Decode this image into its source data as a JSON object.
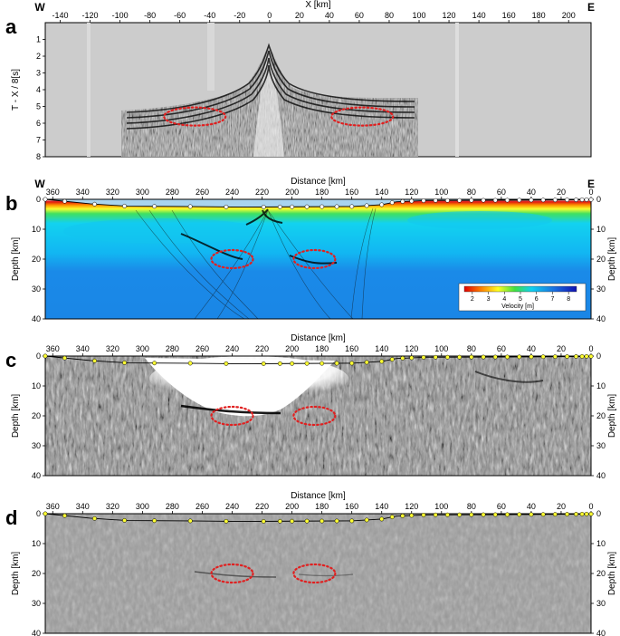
{
  "panels": [
    {
      "letter": "a",
      "west": "W",
      "east": "E",
      "xlabel": "X [km]",
      "ylabel": "T - X / 8[s]",
      "x_range": [
        -150,
        215
      ],
      "y_range": [
        0,
        8
      ],
      "xticks": [
        "-140",
        "-120",
        "-100",
        "-80",
        "-60",
        "-40",
        "-20",
        "0",
        "20",
        "40",
        "60",
        "80",
        "100",
        "120",
        "140",
        "160",
        "180",
        "200"
      ],
      "yticks": [
        "1",
        "2",
        "3",
        "4",
        "5",
        "6",
        "7",
        "8"
      ],
      "xtick_values": [
        -140,
        -120,
        -100,
        -80,
        -60,
        -40,
        -20,
        0,
        20,
        40,
        60,
        80,
        100,
        120,
        140,
        160,
        180,
        200
      ],
      "ytick_values": [
        1,
        2,
        3,
        4,
        5,
        6,
        7,
        8
      ],
      "ellipses": [
        {
          "x": -50,
          "y": 5.6
        },
        {
          "x": 62,
          "y": 5.6
        }
      ]
    },
    {
      "letter": "b",
      "west": "W",
      "east": "E",
      "xlabel": "Distance [km]",
      "ylabel": "Depth [km]",
      "x_range": [
        365,
        0
      ],
      "y_range": [
        0,
        40
      ],
      "xticks": [
        "360",
        "340",
        "320",
        "300",
        "280",
        "260",
        "240",
        "220",
        "200",
        "180",
        "160",
        "140",
        "120",
        "100",
        "80",
        "60",
        "40",
        "20",
        "0"
      ],
      "yticks": [
        "0",
        "10",
        "20",
        "30",
        "40"
      ],
      "right_yticks": [
        "0",
        "10",
        "20",
        "30",
        "40"
      ],
      "colorbar": {
        "ticks": [
          "2",
          "3",
          "4",
          "5",
          "6",
          "7",
          "8"
        ],
        "label": "Velocity [m]"
      },
      "ellipses": [
        {
          "x": 240,
          "y": 20
        },
        {
          "x": 185,
          "y": 20
        }
      ]
    },
    {
      "letter": "c",
      "xlabel": "Distance [km]",
      "ylabel": "Depth [km]",
      "x_range": [
        365,
        0
      ],
      "y_range": [
        0,
        40
      ],
      "xticks": [
        "360",
        "340",
        "320",
        "300",
        "280",
        "260",
        "240",
        "220",
        "200",
        "180",
        "160",
        "140",
        "120",
        "100",
        "80",
        "60",
        "40",
        "20",
        "0"
      ],
      "yticks": [
        "0",
        "10",
        "20",
        "30",
        "40"
      ],
      "right_yticks": [
        "0",
        "10",
        "20",
        "30",
        "40"
      ],
      "ellipses": [
        {
          "x": 240,
          "y": 20
        },
        {
          "x": 185,
          "y": 20
        }
      ]
    },
    {
      "letter": "d",
      "xlabel": "Distance [km]",
      "ylabel": "Depth [km]",
      "x_range": [
        365,
        0
      ],
      "y_range": [
        0,
        40
      ],
      "xticks": [
        "360",
        "340",
        "320",
        "300",
        "280",
        "260",
        "240",
        "220",
        "200",
        "180",
        "160",
        "140",
        "120",
        "100",
        "80",
        "60",
        "40",
        "20",
        "0"
      ],
      "yticks": [
        "0",
        "10",
        "20",
        "30",
        "40"
      ],
      "right_yticks": [
        "0",
        "10",
        "20",
        "30",
        "40"
      ],
      "ellipses": [
        {
          "x": 240,
          "y": 20
        },
        {
          "x": 185,
          "y": 20
        }
      ]
    }
  ],
  "stations": [
    365,
    352,
    332,
    312,
    292,
    268,
    244,
    219,
    208,
    200,
    190,
    180,
    170,
    160,
    150,
    140,
    133,
    126,
    120,
    112,
    104,
    96,
    88,
    80,
    72,
    64,
    56,
    48,
    40,
    32,
    24,
    16,
    10,
    6,
    3,
    0
  ],
  "seafloor_depth": [
    {
      "x": 365,
      "y": 0
    },
    {
      "x": 335,
      "y": 1.5
    },
    {
      "x": 310,
      "y": 2.3
    },
    {
      "x": 270,
      "y": 2.4
    },
    {
      "x": 230,
      "y": 2.6
    },
    {
      "x": 200,
      "y": 2.5
    },
    {
      "x": 160,
      "y": 2.4
    },
    {
      "x": 140,
      "y": 1.8
    },
    {
      "x": 130,
      "y": 0.8
    },
    {
      "x": 110,
      "y": 0.4
    },
    {
      "x": 60,
      "y": 0.3
    },
    {
      "x": 20,
      "y": 0.2
    },
    {
      "x": 0,
      "y": 0.1
    }
  ],
  "colors": {
    "ellipse": "#e02020",
    "station_fill": "#ffff33",
    "velocity_low": "#e00000",
    "velocity_mid": "#10c8f0",
    "velocity_high": "#1a7be6"
  }
}
